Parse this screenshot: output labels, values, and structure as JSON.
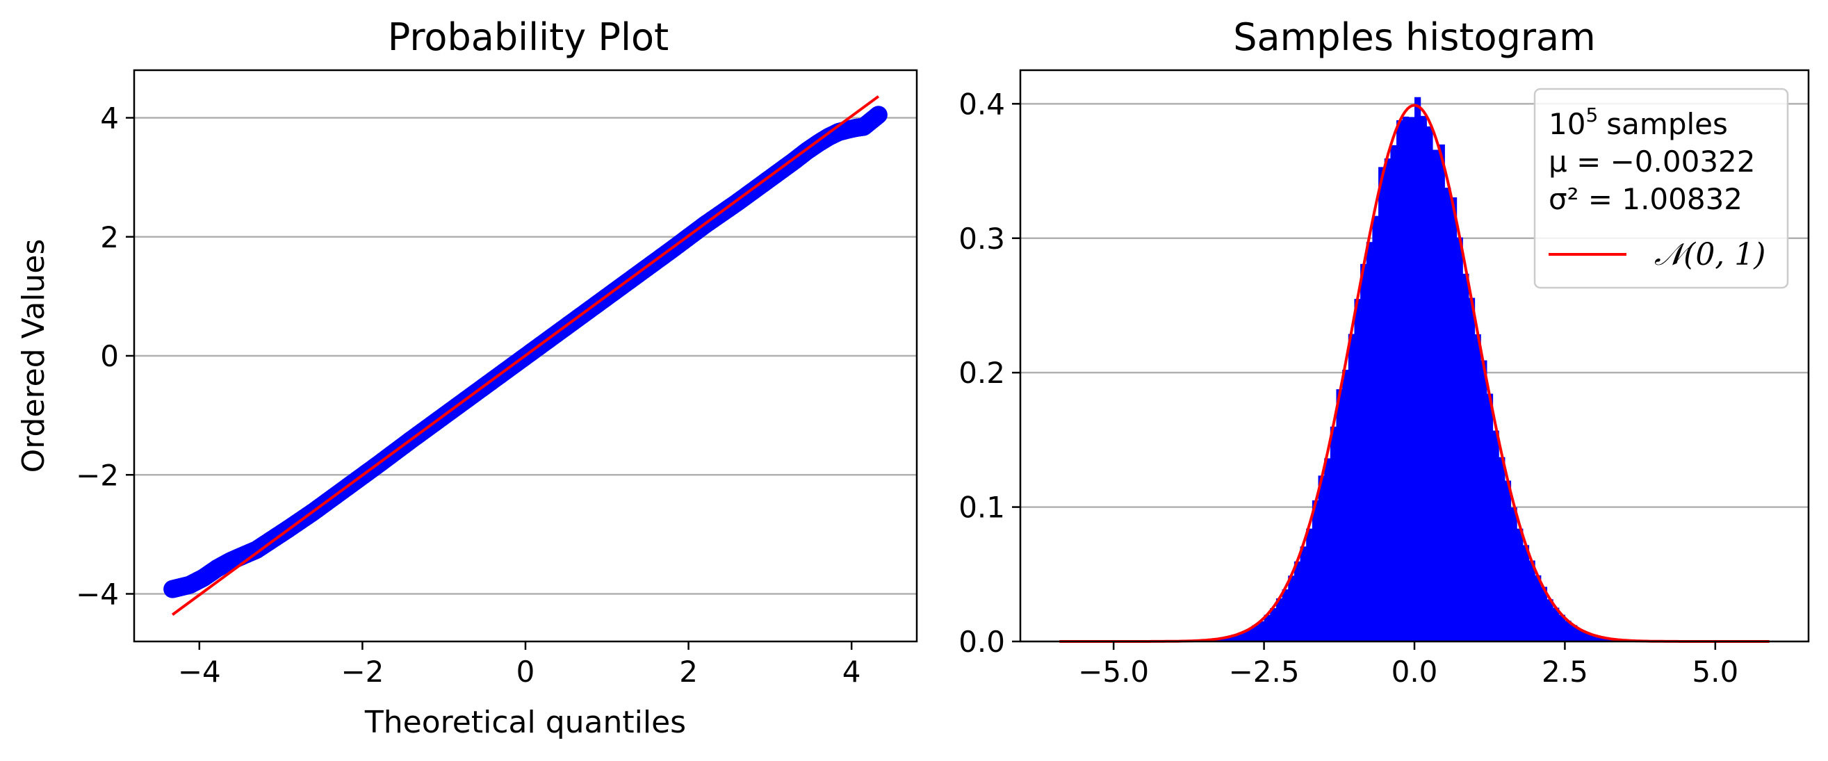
{
  "chart_data": [
    {
      "type": "scatter",
      "title": "Probability Plot",
      "xlabel": "Theoretical quantiles",
      "ylabel": "Ordered Values",
      "xlim": [
        -4.8,
        4.8
      ],
      "ylim": [
        -4.8,
        4.8
      ],
      "xticks": [
        -4,
        -2,
        0,
        2,
        4
      ],
      "yticks": [
        -4,
        -2,
        0,
        2,
        4
      ],
      "xtick_labels": [
        "−4",
        "−2",
        "0",
        "2",
        "4"
      ],
      "ytick_labels": [
        "−4",
        "−2",
        "0",
        "2",
        "4"
      ],
      "grid": "horizontal",
      "series": [
        {
          "kind": "points",
          "color": "#0000ff",
          "x": [
            -4.33,
            -4.12,
            -3.95,
            -3.78,
            -3.62,
            -3.47,
            -3.3,
            -3.1,
            -2.9,
            -2.6,
            -2.2,
            -1.8,
            -1.4,
            -1.0,
            -0.6,
            -0.2,
            0.2,
            0.6,
            1.0,
            1.4,
            1.8,
            2.2,
            2.6,
            2.9,
            3.1,
            3.3,
            3.45,
            3.6,
            3.72,
            3.84,
            3.95,
            4.05,
            4.15,
            4.33
          ],
          "y": [
            -3.92,
            -3.85,
            -3.73,
            -3.57,
            -3.45,
            -3.36,
            -3.26,
            -3.08,
            -2.9,
            -2.62,
            -2.22,
            -1.82,
            -1.41,
            -1.01,
            -0.61,
            -0.21,
            0.19,
            0.59,
            0.99,
            1.39,
            1.79,
            2.2,
            2.58,
            2.88,
            3.08,
            3.28,
            3.44,
            3.58,
            3.68,
            3.76,
            3.8,
            3.83,
            3.85,
            4.05
          ]
        },
        {
          "kind": "line",
          "color": "#ff0000",
          "x": [
            -4.33,
            4.33
          ],
          "y": [
            -4.35,
            4.36
          ]
        }
      ]
    },
    {
      "type": "histogram",
      "title": "Samples histogram",
      "xlim": [
        -6.55,
        6.55
      ],
      "ylim": [
        0,
        0.425
      ],
      "xticks": [
        -5,
        -2.5,
        0,
        2.5,
        5
      ],
      "yticks": [
        0,
        0.1,
        0.2,
        0.3,
        0.4
      ],
      "xtick_labels": [
        "−5.0",
        "−2.5",
        "0.0",
        "2.5",
        "5.0"
      ],
      "ytick_labels": [
        "0.0",
        "0.1",
        "0.2",
        "0.3",
        "0.4"
      ],
      "grid": "horizontal",
      "histogram": {
        "color": "#0000ff",
        "bin_width": 0.1,
        "range": [
          -3.9,
          4.0
        ],
        "sample_size": 100000,
        "mean": -0.00322,
        "variance": 1.00832
      },
      "series": [
        {
          "name": "𝒩(0, 1)",
          "kind": "line",
          "color": "#ff0000",
          "function": "standard normal pdf",
          "x_range": [
            -5.9,
            5.9
          ]
        }
      ],
      "legend": {
        "position": "top-right",
        "lines": [
          "samples",
          "μ = −0.00322",
          "σ² = 1.00832"
        ],
        "samples_base": "10",
        "samples_exp": "5",
        "entry_label": "𝒩(0, 1)"
      }
    }
  ]
}
